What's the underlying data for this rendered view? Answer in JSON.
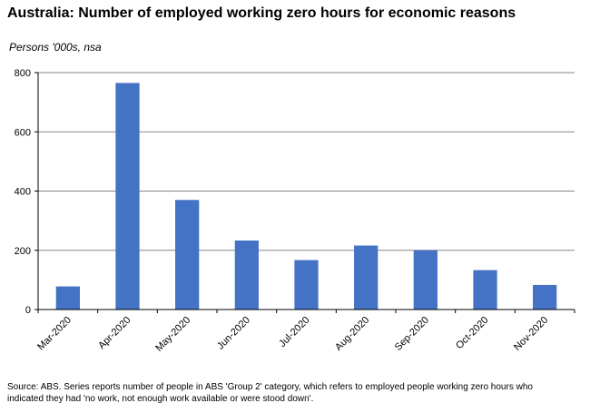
{
  "chart_data": {
    "type": "bar",
    "title": "Australia: Number of employed working zero hours for economic reasons",
    "subtitle": "Persons '000s, nsa",
    "xlabel": "",
    "ylabel": "",
    "categories": [
      "Mar-2020",
      "Apr-2020",
      "May-2020",
      "Jun-2020",
      "Jul-2020",
      "Aug-2020",
      "Sep-2020",
      "Oct-2020",
      "Nov-2020"
    ],
    "values": [
      78,
      765,
      370,
      233,
      167,
      216,
      200,
      133,
      83
    ],
    "ylim": [
      0,
      800
    ],
    "yticks": [
      0,
      200,
      400,
      600,
      800
    ],
    "grid": true,
    "bar_color": "#4472c4",
    "grid_color": "#868686"
  },
  "footnote": {
    "line1": "Source: ABS.  Series reports number of people in ABS 'Group 2' category, which  refers to employed people working zero hours who",
    "line2": "indicated they had  'no work, not enough work available or were stood down'."
  }
}
